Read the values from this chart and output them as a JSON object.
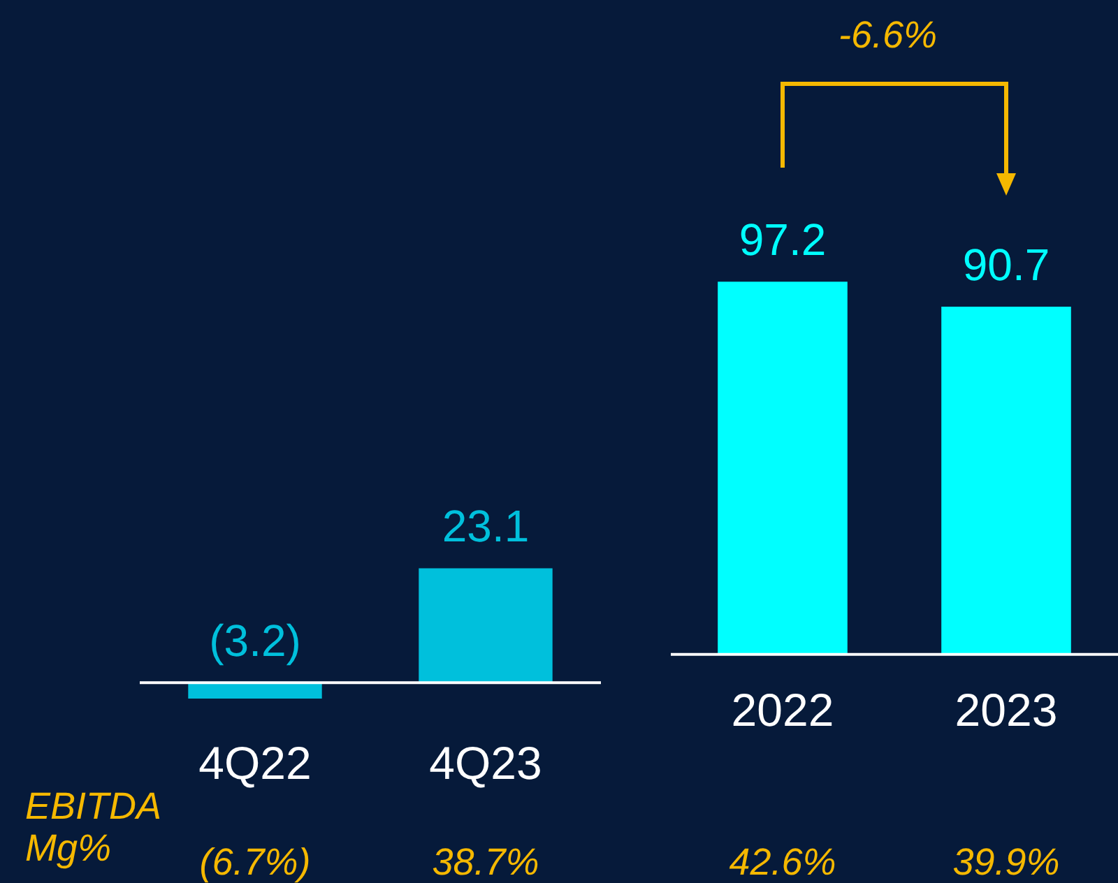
{
  "chart_data": [
    {
      "type": "bar",
      "categories": [
        "4Q22",
        "4Q23"
      ],
      "values": [
        -3.2,
        23.1
      ],
      "colors": [
        "#00c0dc",
        "#00c0dc"
      ],
      "value_labels": [
        "(3.2)",
        "23.1"
      ],
      "tick_labels": "x",
      "annotations": [
        "EBITDA Mg%",
        "(6.7%)",
        "38.7%"
      ]
    },
    {
      "type": "bar",
      "categories": [
        "2022",
        "2023"
      ],
      "values": [
        97.2,
        90.7
      ],
      "colors": [
        "#00ffff",
        "#00ffff"
      ],
      "value_labels": [
        "97.2",
        "90.7"
      ],
      "tick_labels": "x",
      "annotations": [
        "-6.6%",
        "42.6%",
        "39.9%"
      ]
    }
  ]
}
